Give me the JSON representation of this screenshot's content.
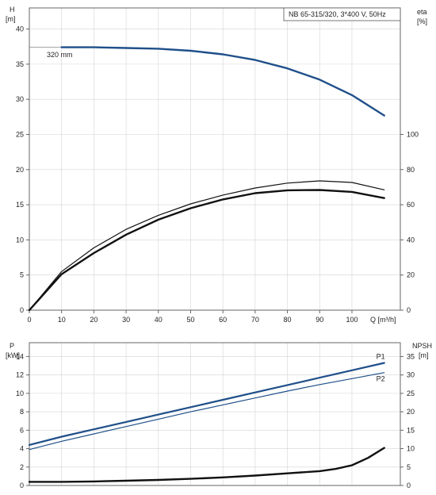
{
  "chart_data": [
    {
      "type": "line",
      "panel": "head-efficiency",
      "title": "NB 65-315/320, 3*400 V, 50Hz",
      "xlabel": "Q [m³/h]",
      "ylabel": "H",
      "ylabel_unit": "[m]",
      "y2label": "eta",
      "y2label_unit": "[%]",
      "xlim": [
        0,
        115
      ],
      "ylim": [
        0,
        43
      ],
      "y2lim": [
        0,
        172
      ],
      "x_ticks": [
        0,
        10,
        20,
        30,
        40,
        50,
        60,
        70,
        80,
        90,
        100
      ],
      "y_ticks": [
        0,
        5,
        10,
        15,
        20,
        25,
        30,
        35,
        40
      ],
      "y2_ticks": [
        0,
        20,
        40,
        60,
        80,
        100
      ],
      "grid": true,
      "annotation": "320 mm",
      "series": [
        {
          "axis": "left",
          "color": "#1f4f8a",
          "width": 2.4,
          "x": [
            10,
            20,
            30,
            40,
            50,
            60,
            70,
            80,
            90,
            100,
            110
          ],
          "y": [
            37.4,
            37.4,
            37.3,
            37.2,
            36.9,
            36.4,
            35.6,
            34.4,
            32.8,
            30.6,
            27.7
          ]
        },
        {
          "axis": "right",
          "color": "#111111",
          "width": 1.2,
          "x": [
            0,
            10,
            20,
            30,
            40,
            50,
            60,
            70,
            80,
            90,
            100,
            110
          ],
          "y": [
            0,
            22,
            35.5,
            46,
            54,
            60.5,
            65.5,
            69.5,
            72.3,
            73.6,
            72.7,
            68.5
          ]
        },
        {
          "axis": "right",
          "color": "#111111",
          "width": 2.4,
          "x": [
            0,
            10,
            20,
            30,
            40,
            50,
            60,
            70,
            80,
            90,
            100,
            110
          ],
          "y": [
            0,
            20.5,
            32.5,
            43,
            51.5,
            58,
            63,
            66.6,
            68.2,
            68.4,
            67.3,
            63.8
          ]
        }
      ]
    },
    {
      "type": "line",
      "panel": "power-npsh",
      "xlabel": "",
      "ylabel": "P",
      "ylabel_unit": "[kW]",
      "y2label": "NPSH",
      "y2label_unit": "[m]",
      "xlim": [
        0,
        115
      ],
      "ylim": [
        0,
        15.5
      ],
      "y2lim": [
        0,
        38.75
      ],
      "y_ticks": [
        0,
        2,
        4,
        6,
        8,
        10,
        12,
        14
      ],
      "y2_ticks": [
        0,
        5,
        10,
        15,
        20,
        25,
        30,
        35
      ],
      "grid": true,
      "series": [
        {
          "name": "P1",
          "axis": "left",
          "color": "#1f4f8a",
          "width": 2.2,
          "x": [
            0,
            10,
            20,
            30,
            40,
            50,
            60,
            70,
            80,
            90,
            100,
            110
          ],
          "y": [
            4.4,
            5.3,
            6.1,
            6.9,
            7.7,
            8.5,
            9.3,
            10.1,
            10.9,
            11.7,
            12.5,
            13.3
          ]
        },
        {
          "name": "P2",
          "axis": "left",
          "color": "#1f4f8a",
          "width": 1.2,
          "x": [
            0,
            10,
            20,
            30,
            40,
            50,
            60,
            70,
            80,
            90,
            100,
            110
          ],
          "y": [
            3.9,
            4.8,
            5.6,
            6.4,
            7.2,
            8.0,
            8.75,
            9.5,
            10.25,
            10.95,
            11.6,
            12.25
          ]
        },
        {
          "axis": "right",
          "color": "#111111",
          "width": 2.4,
          "x": [
            0,
            10,
            20,
            30,
            40,
            50,
            60,
            70,
            80,
            90,
            95,
            100,
            105,
            110
          ],
          "y": [
            1.0,
            1.0,
            1.1,
            1.3,
            1.5,
            1.8,
            2.2,
            2.7,
            3.3,
            3.9,
            4.5,
            5.5,
            7.5,
            10.2
          ]
        }
      ]
    }
  ]
}
